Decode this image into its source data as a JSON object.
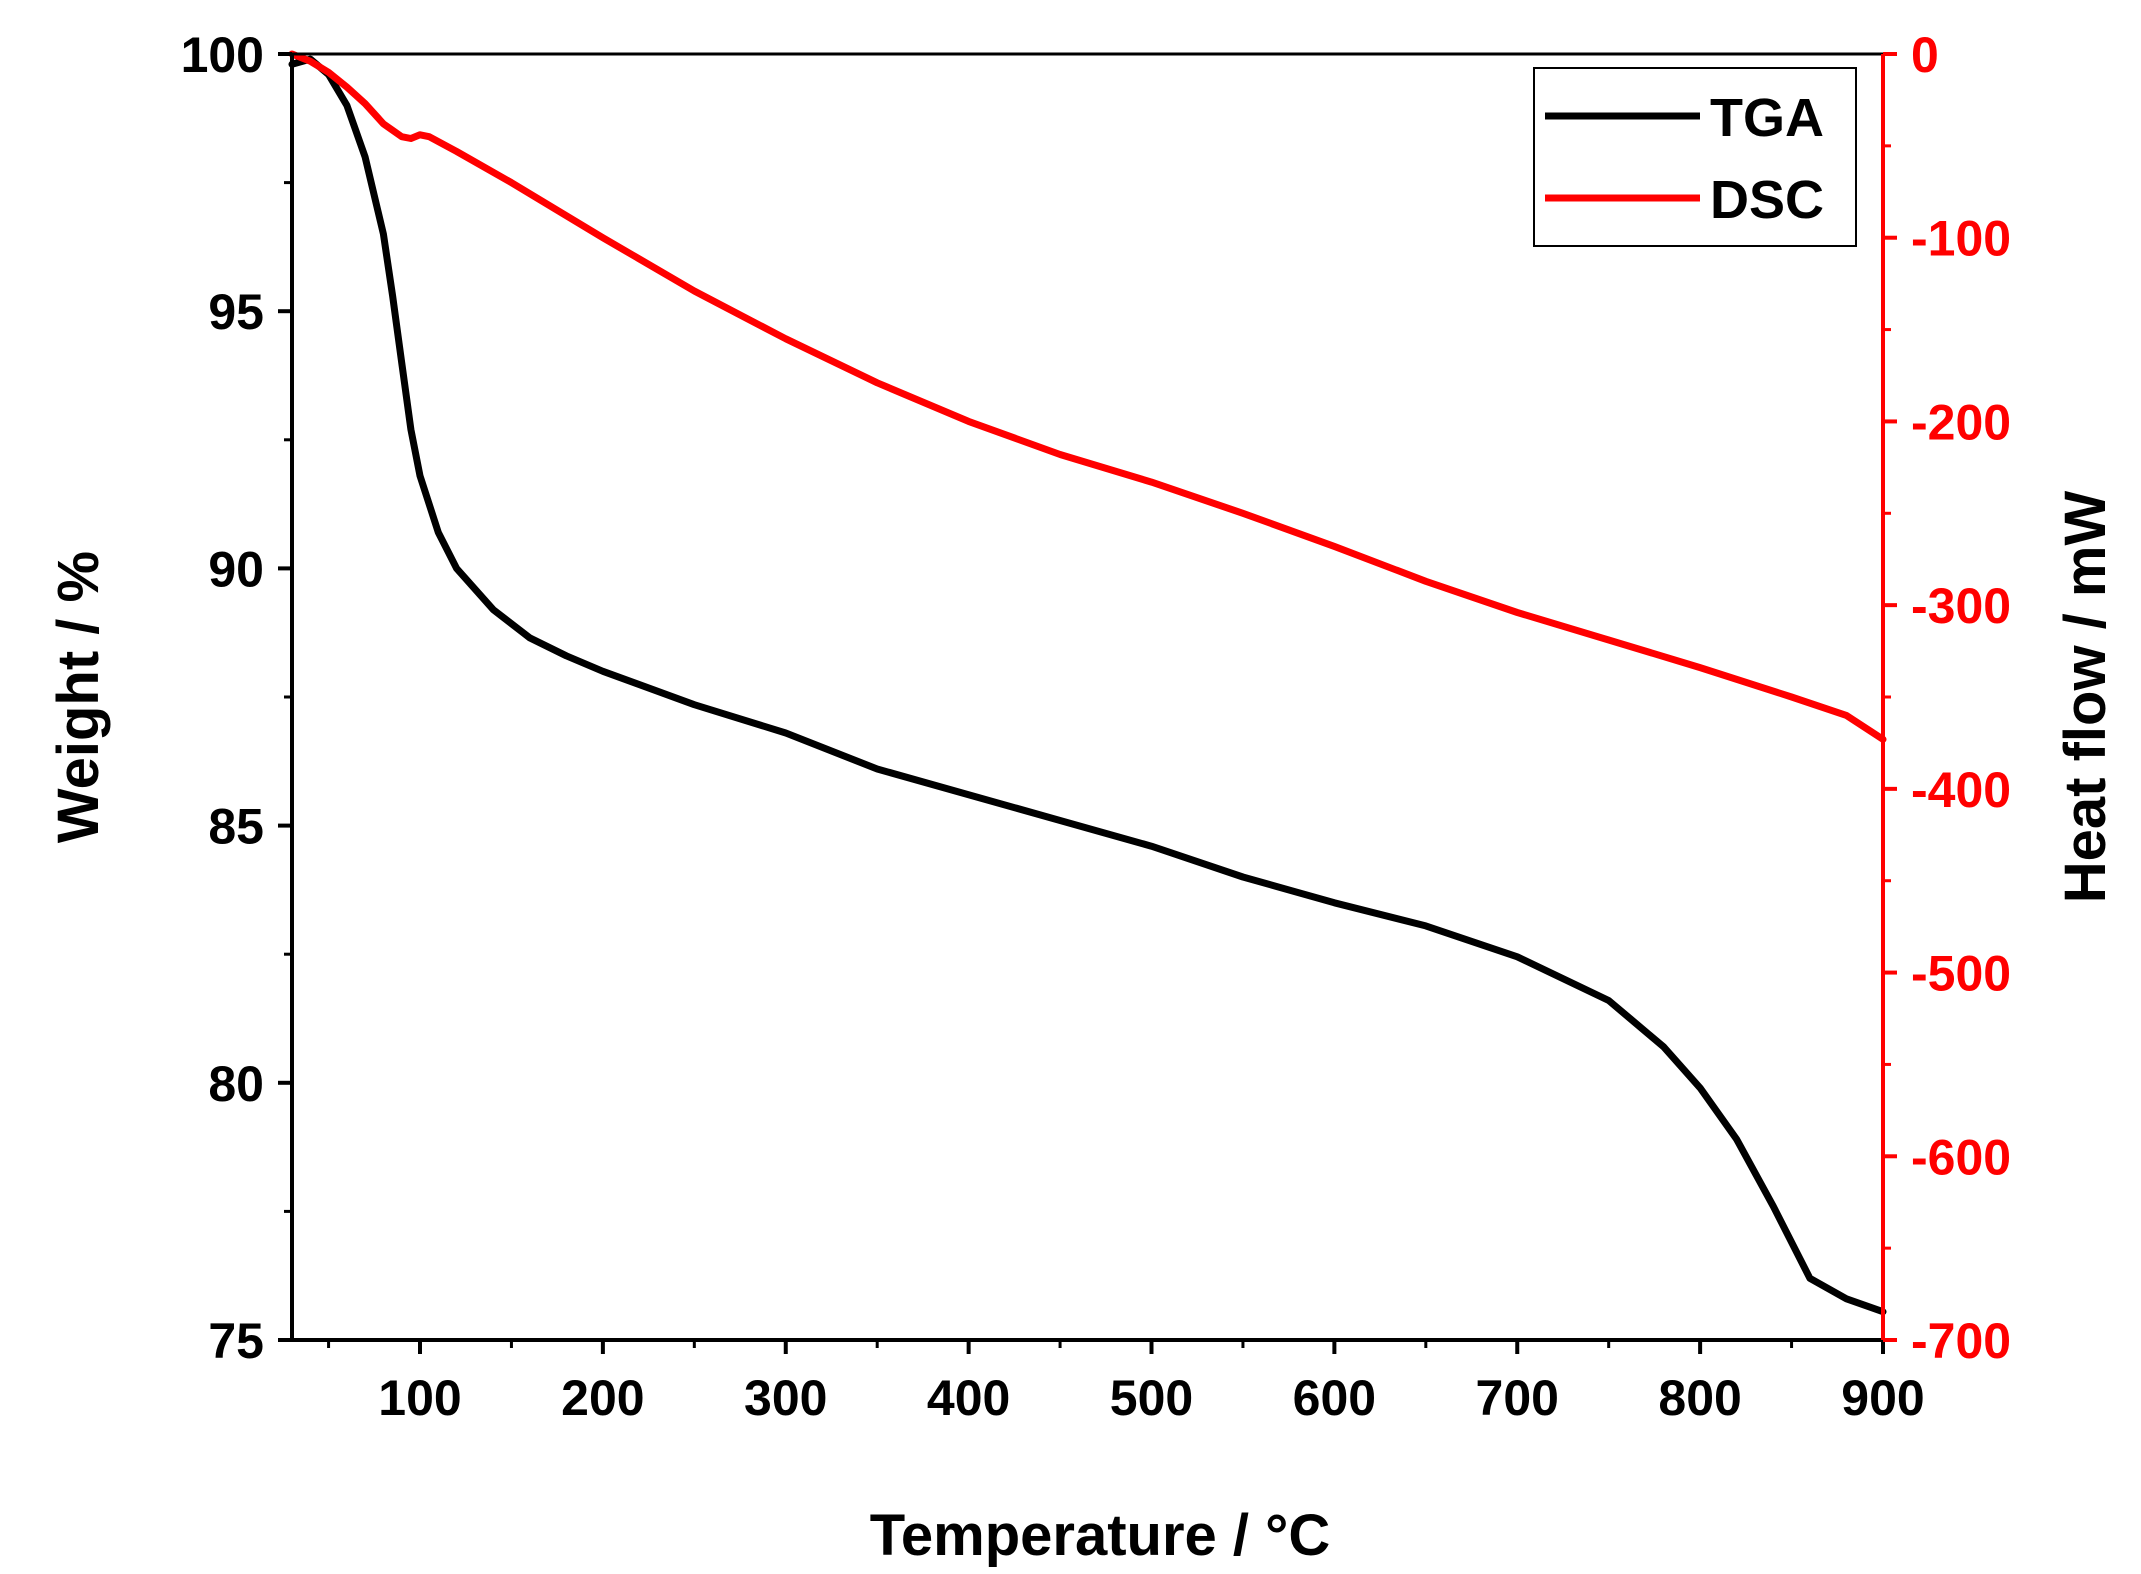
{
  "chart_data": {
    "type": "line",
    "title": "",
    "xlabel": "Temperature / °C",
    "ylabel_left": "Weight / %",
    "ylabel_right": "Heat flow / mW",
    "xlim": [
      30,
      900
    ],
    "ylim_left": [
      75,
      100
    ],
    "ylim_right": [
      -700,
      0
    ],
    "x_ticks": [
      100,
      200,
      300,
      400,
      500,
      600,
      700,
      800,
      900
    ],
    "x_tick_labels": [
      "100",
      "200",
      "300",
      "400",
      "500",
      "600",
      "700",
      "800",
      "900"
    ],
    "y_left_ticks": [
      75,
      80,
      85,
      90,
      95,
      100
    ],
    "y_left_tick_labels": [
      "75",
      "80",
      "85",
      "90",
      "95",
      "100"
    ],
    "y_right_ticks": [
      0,
      -100,
      -200,
      -300,
      -400,
      -500,
      -600,
      -700
    ],
    "y_right_tick_labels": [
      "0",
      "-100",
      "-200",
      "-300",
      "-400",
      "-500",
      "-600",
      "-700"
    ],
    "legend_position": "top-right",
    "series": [
      {
        "name": "TGA",
        "axis": "left",
        "color": "#000000",
        "x": [
          30,
          40,
          50,
          60,
          70,
          80,
          85,
          90,
          95,
          100,
          110,
          120,
          140,
          160,
          180,
          200,
          250,
          300,
          350,
          400,
          450,
          500,
          550,
          600,
          650,
          700,
          750,
          780,
          800,
          820,
          840,
          860,
          880,
          900
        ],
        "y": [
          99.8,
          99.9,
          99.6,
          99.0,
          98.0,
          96.5,
          95.3,
          94.0,
          92.7,
          91.8,
          90.7,
          90.0,
          89.2,
          88.65,
          88.3,
          88.0,
          87.35,
          86.8,
          86.1,
          85.6,
          85.1,
          84.6,
          84.0,
          83.5,
          83.05,
          82.45,
          81.6,
          80.7,
          79.9,
          78.9,
          77.6,
          76.2,
          75.8,
          75.55
        ]
      },
      {
        "name": "DSC",
        "axis": "right",
        "color": "#ff0000",
        "x": [
          30,
          40,
          50,
          60,
          70,
          80,
          90,
          95,
          100,
          105,
          120,
          150,
          200,
          250,
          300,
          350,
          400,
          450,
          500,
          550,
          600,
          650,
          700,
          750,
          800,
          850,
          880,
          900
        ],
        "y": [
          0,
          -4,
          -10,
          -18,
          -27,
          -38,
          -45,
          -46,
          -44,
          -45,
          -53,
          -70,
          -100,
          -129,
          -155,
          -179,
          -200,
          -218,
          -233,
          -250,
          -268,
          -287,
          -304,
          -319,
          -334,
          -350,
          -360,
          -373
        ]
      }
    ]
  }
}
